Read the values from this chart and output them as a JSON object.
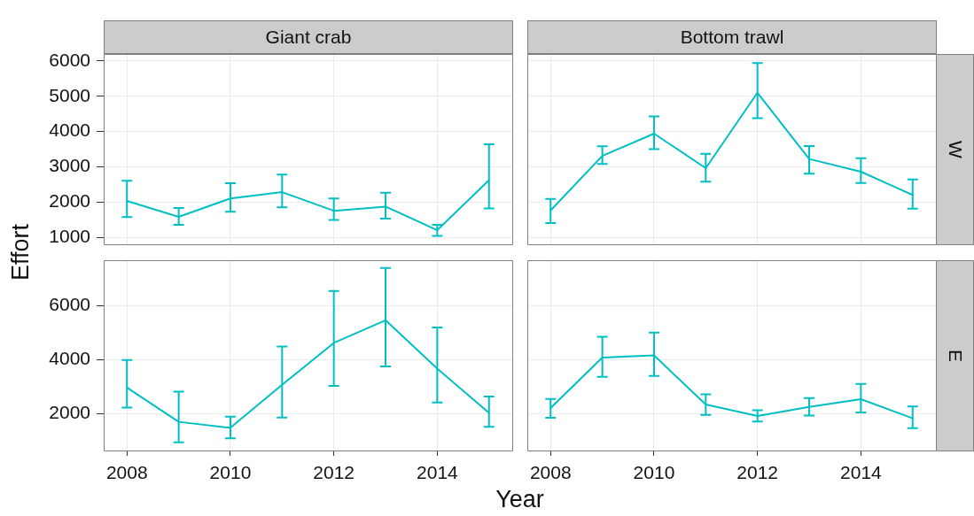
{
  "chart_data": [
    {
      "type": "line",
      "title": "Giant crab",
      "ylabel": "Effort",
      "x": [
        2008,
        2009,
        2010,
        2011,
        2012,
        2013,
        2014,
        2015
      ],
      "values": [
        2030,
        1580,
        2100,
        2280,
        1750,
        1870,
        1200,
        2620
      ],
      "errors": [
        [
          1570,
          2600
        ],
        [
          1350,
          1830
        ],
        [
          1720,
          2530
        ],
        [
          1850,
          2780
        ],
        [
          1490,
          2100
        ],
        [
          1530,
          2260
        ],
        [
          1040,
          1350
        ],
        [
          1820,
          3640
        ]
      ],
      "color": "#00bfc4",
      "xlim": [
        2007.55,
        2015.45
      ],
      "ylim": [
        800,
        6200
      ],
      "xticks": [
        2008,
        2010,
        2012,
        2014
      ],
      "yticks": [
        1000,
        2000,
        3000,
        4000,
        5000,
        6000
      ],
      "grid": true,
      "tick_labels": "y",
      "marker": "none"
    },
    {
      "type": "line",
      "title": "Bottom trawl",
      "y2label": "W",
      "x": [
        2008,
        2009,
        2010,
        2011,
        2012,
        2013,
        2014,
        2015
      ],
      "values": [
        1760,
        3310,
        3940,
        2960,
        5100,
        3220,
        2860,
        2200
      ],
      "errors": [
        [
          1400,
          2090
        ],
        [
          3080,
          3580
        ],
        [
          3500,
          4430
        ],
        [
          2580,
          3370
        ],
        [
          4380,
          5940
        ],
        [
          2800,
          3590
        ],
        [
          2540,
          3240
        ],
        [
          1810,
          2640
        ]
      ],
      "color": "#00bfc4",
      "xlim": [
        2007.55,
        2015.45
      ],
      "ylim": [
        800,
        6200
      ],
      "xticks": [
        2008,
        2010,
        2012,
        2014
      ],
      "yticks": [
        1000,
        2000,
        3000,
        4000,
        5000,
        6000
      ],
      "grid": true,
      "tick_labels": false,
      "marker": "none"
    },
    {
      "type": "line",
      "xlabel": "Year",
      "x": [
        2008,
        2009,
        2010,
        2011,
        2012,
        2013,
        2014,
        2015
      ],
      "values": [
        2960,
        1690,
        1470,
        3060,
        4610,
        5450,
        3660,
        2020
      ],
      "errors": [
        [
          2220,
          3980
        ],
        [
          930,
          2810
        ],
        [
          1080,
          1880
        ],
        [
          1850,
          4480
        ],
        [
          3020,
          6530
        ],
        [
          3740,
          7380
        ],
        [
          2410,
          5180
        ],
        [
          1510,
          2630
        ]
      ],
      "color": "#00bfc4",
      "xlim": [
        2007.55,
        2015.45
      ],
      "ylim": [
        630,
        7670
      ],
      "xticks": [
        2008,
        2010,
        2012,
        2014
      ],
      "yticks": [
        2000,
        4000,
        6000
      ],
      "grid": true,
      "marker": "none"
    },
    {
      "type": "line",
      "y2label": "E",
      "x": [
        2008,
        2009,
        2010,
        2011,
        2012,
        2013,
        2014,
        2015
      ],
      "values": [
        2200,
        4070,
        4150,
        2330,
        1910,
        2240,
        2530,
        1820
      ],
      "errors": [
        [
          1840,
          2540
        ],
        [
          3360,
          4840
        ],
        [
          3390,
          4990
        ],
        [
          1950,
          2710
        ],
        [
          1700,
          2120
        ],
        [
          1920,
          2570
        ],
        [
          2040,
          3090
        ],
        [
          1460,
          2260
        ]
      ],
      "color": "#00bfc4",
      "xlim": [
        2007.55,
        2015.45
      ],
      "ylim": [
        630,
        7670
      ],
      "xticks": [
        2008,
        2010,
        2012,
        2014
      ],
      "yticks": [
        2000,
        4000,
        6000
      ],
      "grid": true,
      "tick_labels": "x",
      "marker": "none"
    }
  ]
}
